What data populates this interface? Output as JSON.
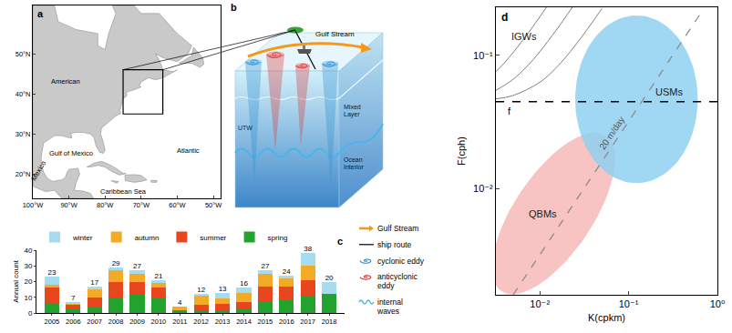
{
  "chart_data": [
    {
      "type": "map",
      "panel_label": "a",
      "xlim": [
        -100,
        -48
      ],
      "ylim": [
        14,
        62
      ],
      "xticks": [
        {
          "value": -100,
          "label": "100°W"
        },
        {
          "value": -90,
          "label": "90°W"
        },
        {
          "value": -80,
          "label": "80°W"
        },
        {
          "value": -70,
          "label": "70°W"
        },
        {
          "value": -60,
          "label": "60°W"
        },
        {
          "value": -50,
          "label": "50°W"
        }
      ],
      "yticks": [
        {
          "value": 20,
          "label": "20°N"
        },
        {
          "value": 30,
          "label": "30°N"
        },
        {
          "value": 40,
          "label": "40°N"
        },
        {
          "value": 50,
          "label": "50°N"
        }
      ],
      "annotations": [
        "American",
        "Gulf of Mexico",
        "Mexico",
        "Caribbean Sea",
        "Atlantic"
      ],
      "study_box": {
        "lon": [
          -75,
          -64
        ],
        "lat": [
          35,
          46
        ]
      }
    },
    {
      "type": "bar",
      "stacked": true,
      "panel_label": "c",
      "grid": false,
      "legend": "top",
      "y_label": "Annual count",
      "categories": [
        "2005",
        "2006",
        "2007",
        "2008",
        "2009",
        "2010",
        "2011",
        "2012",
        "2013",
        "2014",
        "2015",
        "2016",
        "2017",
        "2018"
      ],
      "series": [
        {
          "name": "spring",
          "color": "#22a32d",
          "values": [
            6,
            3,
            4,
            10,
            12,
            9,
            1,
            2,
            2,
            3,
            7,
            8,
            11,
            12
          ]
        },
        {
          "name": "summer",
          "color": "#e8461e",
          "values": [
            10,
            2,
            6,
            10,
            8,
            7,
            1,
            3,
            4,
            4,
            10,
            9,
            10,
            0
          ]
        },
        {
          "name": "autumn",
          "color": "#f3aa25",
          "values": [
            2,
            1,
            5,
            7,
            5,
            3,
            2,
            6,
            3,
            6,
            8,
            5,
            9,
            0
          ]
        },
        {
          "name": "winter",
          "color": "#a6dbf0",
          "values": [
            5,
            1,
            2,
            2,
            2,
            2,
            0,
            1,
            4,
            3,
            2,
            2,
            8,
            8
          ]
        }
      ],
      "totals": [
        23,
        7,
        17,
        29,
        27,
        21,
        4,
        12,
        13,
        16,
        27,
        24,
        38,
        20
      ],
      "ylim": [
        0,
        40
      ],
      "yticks": [
        0,
        10,
        20,
        30,
        40
      ]
    },
    {
      "type": "line",
      "log": true,
      "grid": false,
      "panel_label": "d",
      "x_label": "K(cpkm)",
      "y_label": "F(cph)",
      "xlim": [
        0.0032,
        1
      ],
      "ylim": [
        0.0016,
        0.23
      ],
      "xticks": [
        {
          "value": 0.01,
          "label": "10⁻²"
        },
        {
          "value": 0.1,
          "label": "10⁻¹"
        },
        {
          "value": 1,
          "label": "10⁰"
        }
      ],
      "yticks": [
        {
          "value": 0.01,
          "label": "10⁻²"
        },
        {
          "value": 0.1,
          "label": "10⁻¹"
        }
      ],
      "series": [
        {
          "name": "IGWs",
          "color": "#7f7f7f",
          "line_style": "solid",
          "curves": [
            {
              "x": [
                0.0032,
                0.004,
                0.005,
                0.006,
                0.008,
                0.01,
                0.012
              ],
              "y": [
                0.0757,
                0.0883,
                0.1051,
                0.1226,
                0.1585,
                0.1953,
                0.2324
              ]
            },
            {
              "x": [
                0.0032,
                0.005,
                0.007,
                0.01,
                0.015,
                0.02,
                0.025
              ],
              "y": [
                0.0547,
                0.0662,
                0.0815,
                0.1069,
                0.1523,
                0.1992,
                0.2466
              ]
            },
            {
              "x": [
                0.0032,
                0.005,
                0.01,
                0.015,
                0.02,
                0.03,
                0.04,
                0.05
              ],
              "y": [
                0.0472,
                0.0501,
                0.0629,
                0.0799,
                0.0988,
                0.1395,
                0.1817,
                0.2246
              ]
            }
          ]
        },
        {
          "name": "f",
          "color": "#000000",
          "line_style": "dash",
          "value": 0.045
        },
        {
          "name": "20 m/day",
          "color": "#8c8c8c",
          "line_style": "dash",
          "x": [
            0.005,
            0.7
          ],
          "y": [
            0.0016,
            0.224
          ]
        }
      ],
      "regions": [
        {
          "name": "QBMs",
          "color": "#f6b8b8",
          "marker": "tilted_ellipse",
          "k_range": [
            0.0037,
            0.055
          ],
          "f_range": [
            0.0017,
            0.025
          ]
        },
        {
          "name": "USMs",
          "color": "#8fd0f0",
          "marker": "ellipse",
          "k_range": [
            0.025,
            0.6
          ],
          "f_range": [
            0.011,
            0.2
          ]
        }
      ]
    }
  ],
  "schematic": {
    "panel_label": "b",
    "labels": {
      "current": "Gulf Stream",
      "left": "UTW",
      "mixed_layer": "Mixed Layer",
      "interior": "Ocean Interior"
    },
    "key_items": [
      {
        "name": "Gulf Stream",
        "marker": "arrow",
        "color": "#f39a1e"
      },
      {
        "name": "ship route",
        "marker": "line",
        "color": "#000000"
      },
      {
        "name": "cyclonic eddy",
        "marker": "spiral",
        "color": "#2f8fd0"
      },
      {
        "name": "anticyclonic eddy",
        "marker": "spiral",
        "color": "#d9383a"
      },
      {
        "name": "internal waves",
        "marker": "wave",
        "color": "#49b6ea"
      }
    ]
  }
}
